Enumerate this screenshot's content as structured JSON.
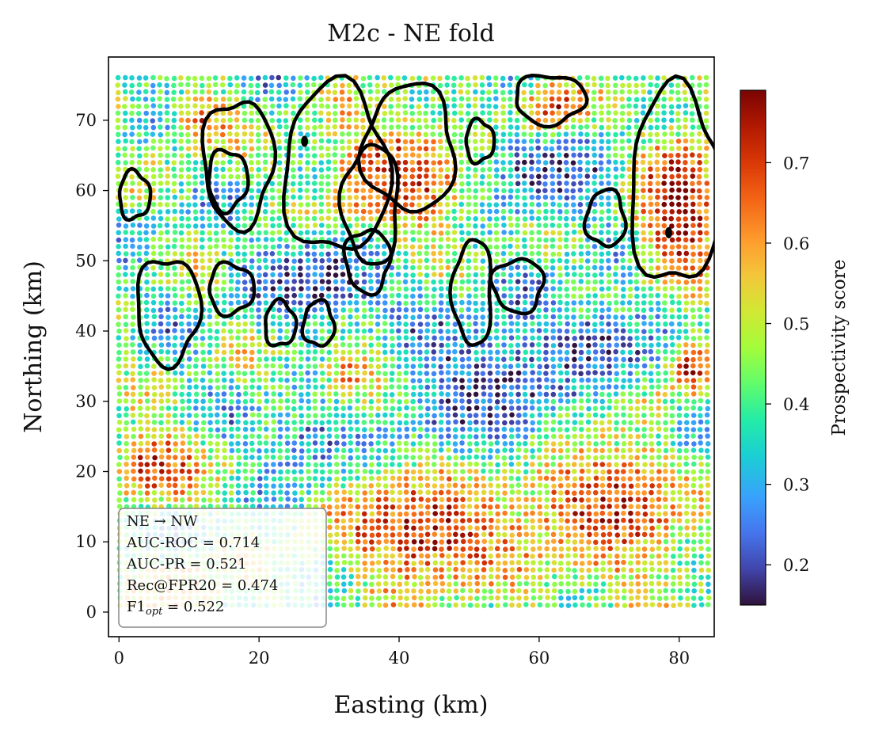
{
  "chart_data": {
    "type": "scatter",
    "title": "M2c - NE fold",
    "xlabel": "Easting (km)",
    "ylabel": "Northing (km)",
    "xlim": [
      -1.5,
      85
    ],
    "ylim": [
      -3.5,
      79
    ],
    "xticks": [
      0,
      20,
      40,
      60,
      80
    ],
    "yticks": [
      0,
      10,
      20,
      30,
      40,
      50,
      60,
      70
    ],
    "grid": false,
    "colormap": "turbo",
    "colorbar": {
      "label": "Prospectivity score",
      "range": [
        0.15,
        0.79
      ],
      "ticks": [
        0.2,
        0.3,
        0.4,
        0.5,
        0.6,
        0.7
      ]
    },
    "point_grid": {
      "x_range": [
        0,
        84
      ],
      "y_range": [
        1,
        76
      ],
      "spacing_km": 1
    },
    "high_clusters": [
      {
        "x": 44,
        "y": 12,
        "rx": 13,
        "ry": 9,
        "v": 0.72
      },
      {
        "x": 70,
        "y": 15,
        "rx": 13,
        "ry": 11,
        "v": 0.7
      },
      {
        "x": 5,
        "y": 21,
        "rx": 6,
        "ry": 5,
        "v": 0.72
      },
      {
        "x": 80,
        "y": 58,
        "rx": 6,
        "ry": 11,
        "v": 0.78
      },
      {
        "x": 40,
        "y": 62,
        "rx": 11,
        "ry": 9,
        "v": 0.7
      },
      {
        "x": 62,
        "y": 72,
        "rx": 5,
        "ry": 4,
        "v": 0.7
      },
      {
        "x": 82,
        "y": 35,
        "rx": 3,
        "ry": 4,
        "v": 0.75
      },
      {
        "x": 33,
        "y": 34,
        "rx": 5,
        "ry": 4,
        "v": 0.6
      },
      {
        "x": 12,
        "y": 70,
        "rx": 4,
        "ry": 4,
        "v": 0.66
      },
      {
        "x": 8,
        "y": 3,
        "rx": 7,
        "ry": 5,
        "v": 0.6
      }
    ],
    "low_clusters": [
      {
        "x": 53,
        "y": 30,
        "rx": 13,
        "ry": 12,
        "v": 0.18
      },
      {
        "x": 30,
        "y": 48,
        "rx": 9,
        "ry": 7,
        "v": 0.18
      },
      {
        "x": 60,
        "y": 63,
        "rx": 10,
        "ry": 7,
        "v": 0.18
      },
      {
        "x": 70,
        "y": 38,
        "rx": 7,
        "ry": 6,
        "v": 0.2
      },
      {
        "x": 28,
        "y": 24,
        "rx": 7,
        "ry": 6,
        "v": 0.25
      },
      {
        "x": 81,
        "y": 24,
        "rx": 4,
        "ry": 5,
        "v": 0.22
      }
    ],
    "contours": [
      {
        "cx": 17.0,
        "cy": 64.0,
        "rx": 5.0,
        "ry": 9.0
      },
      {
        "cx": 15.5,
        "cy": 61.5,
        "rx": 2.8,
        "ry": 4.3
      },
      {
        "cx": 2.2,
        "cy": 59.3,
        "rx": 2.2,
        "ry": 3.4
      },
      {
        "cx": 31.0,
        "cy": 63.0,
        "rx": 7.5,
        "ry": 12.0
      },
      {
        "cx": 41.5,
        "cy": 66.0,
        "rx": 6.5,
        "ry": 9.0
      },
      {
        "cx": 36.0,
        "cy": 58.0,
        "rx": 4.0,
        "ry": 8.5
      },
      {
        "cx": 35.5,
        "cy": 50.0,
        "rx": 3.2,
        "ry": 4.5
      },
      {
        "cx": 61.5,
        "cy": 73.0,
        "rx": 5.0,
        "ry": 3.5
      },
      {
        "cx": 51.5,
        "cy": 67.0,
        "rx": 2.0,
        "ry": 3.0
      },
      {
        "cx": 79.5,
        "cy": 60.5,
        "rx": 6.5,
        "ry": 14.0
      },
      {
        "cx": 69.5,
        "cy": 56.0,
        "rx": 2.8,
        "ry": 4.0
      },
      {
        "cx": 50.5,
        "cy": 45.5,
        "rx": 2.8,
        "ry": 7.5
      },
      {
        "cx": 57.0,
        "cy": 46.5,
        "rx": 3.6,
        "ry": 3.8
      },
      {
        "cx": 7.0,
        "cy": 43.0,
        "rx": 4.5,
        "ry": 7.5
      },
      {
        "cx": 16.0,
        "cy": 46.0,
        "rx": 3.2,
        "ry": 3.6
      },
      {
        "cx": 23.0,
        "cy": 41.0,
        "rx": 2.2,
        "ry": 3.2
      },
      {
        "cx": 28.5,
        "cy": 41.0,
        "rx": 2.2,
        "ry": 3.2
      }
    ],
    "contour_markers": [
      {
        "x": 26.5,
        "y": 67
      },
      {
        "x": 78.5,
        "y": 54
      }
    ],
    "annotation": {
      "line1": "NE → NW",
      "line2": "AUC-ROC  = 0.714",
      "line3": "AUC-PR  = 0.521",
      "line4": "Rec@FPR20  = 0.474",
      "line5_main": "F1",
      "line5_sub": "opt",
      "line5_rest": " = 0.522"
    }
  }
}
